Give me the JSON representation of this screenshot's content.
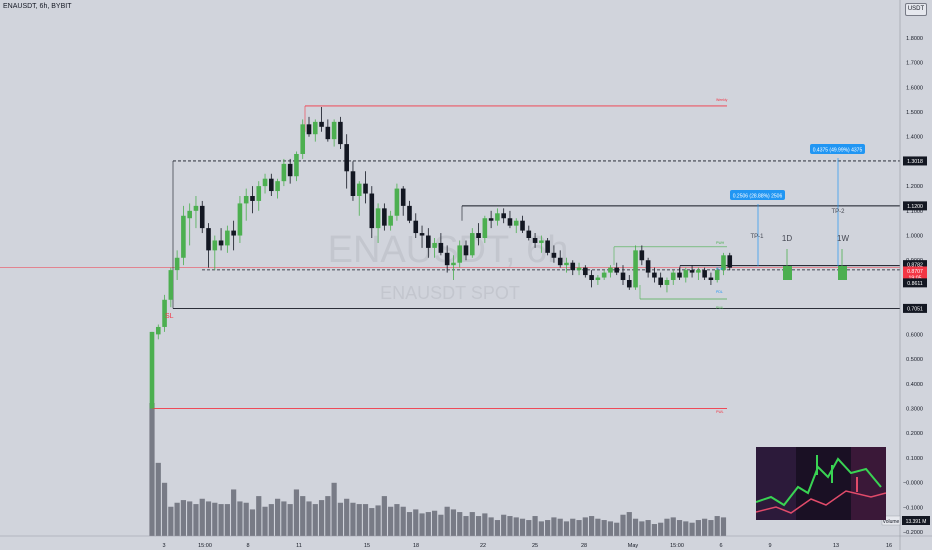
{
  "header": {
    "symbol_line": "ENAUSDT, 6h, BYBIT",
    "quote_badge": "USDT"
  },
  "watermark": {
    "main": "ENAUSDT, 6h",
    "sub": "ENAUSDT SPOT"
  },
  "colors": {
    "background": "#d1d4dc",
    "up": "#4caf50",
    "down": "#131722",
    "volume": "#787b86",
    "red_line": "#f23645",
    "accent_blue": "#2196f3",
    "green_zone": "#4caf50"
  },
  "chart_data": {
    "type": "candlestick",
    "symbol": "ENAUSDT",
    "timeframe": "6h",
    "exchange": "BYBIT",
    "y_ticks": [
      "1.8000",
      "1.7000",
      "1.6000",
      "1.5000",
      "1.4000",
      "1.3000",
      "1.2000",
      "1.1000",
      "1.0000",
      "0.9000",
      "0.8000",
      "0.7000",
      "0.6000",
      "0.5000",
      "0.4000",
      "0.3000",
      "0.2000",
      "0.1000",
      "−0.0000",
      "−0.1000",
      "−0.2000"
    ],
    "x_ticks": [
      "3",
      "15:00",
      "8",
      "11",
      "15",
      "18",
      "22",
      "25",
      "28",
      "May",
      "15:00",
      "6",
      "9",
      "13",
      "16"
    ],
    "ylim": [
      -0.2,
      1.8
    ],
    "price_labels": [
      {
        "value": "1.3018",
        "style": "dark"
      },
      {
        "value": "1.1200",
        "style": "dark"
      },
      {
        "value": "0.8782",
        "style": "dark"
      },
      {
        "value": "0.8707",
        "style": "red"
      },
      {
        "value": "19:05",
        "style": "red"
      },
      {
        "value": "0.8611",
        "style": "dark"
      },
      {
        "value": "0.7051",
        "style": "dark"
      }
    ],
    "volume_label": "Volume",
    "volume_value": "13.391 M",
    "annotations": {
      "sl": "SL",
      "tp1": "TP-1",
      "tp2": "TP-2",
      "target1": "0.2506 (28.88%) 2506",
      "target2": "0.4375 (49.99%) 4375",
      "tf_1d": "1D",
      "tf_1w": "1W",
      "lvl_high": "Weekly",
      "lvl_pwh": "PWH",
      "lvl_pwl": "PWL",
      "lvl_pdh": "PDH",
      "lvl_pdl": "PDL",
      "lvl_low": "PWL"
    },
    "candles": [
      [
        0.3,
        0.61,
        0.3,
        0.61
      ],
      [
        0.6,
        0.64,
        0.58,
        0.63
      ],
      [
        0.63,
        0.76,
        0.61,
        0.74
      ],
      [
        0.74,
        0.87,
        0.71,
        0.86
      ],
      [
        0.86,
        0.94,
        0.82,
        0.91
      ],
      [
        0.91,
        1.12,
        0.88,
        1.08
      ],
      [
        1.07,
        1.13,
        0.96,
        1.1
      ],
      [
        1.1,
        1.16,
        1.03,
        1.12
      ],
      [
        1.12,
        1.14,
        1.01,
        1.03
      ],
      [
        1.03,
        1.05,
        0.87,
        0.94
      ],
      [
        0.94,
        1.0,
        0.86,
        0.98
      ],
      [
        0.98,
        1.03,
        0.94,
        0.96
      ],
      [
        0.96,
        1.04,
        0.93,
        1.02
      ],
      [
        1.02,
        1.06,
        0.94,
        1.0
      ],
      [
        1.0,
        1.16,
        0.97,
        1.13
      ],
      [
        1.13,
        1.19,
        1.06,
        1.16
      ],
      [
        1.16,
        1.2,
        1.09,
        1.14
      ],
      [
        1.14,
        1.22,
        1.1,
        1.2
      ],
      [
        1.2,
        1.25,
        1.17,
        1.23
      ],
      [
        1.23,
        1.25,
        1.16,
        1.18
      ],
      [
        1.18,
        1.23,
        1.15,
        1.22
      ],
      [
        1.22,
        1.31,
        1.2,
        1.29
      ],
      [
        1.29,
        1.31,
        1.21,
        1.24
      ],
      [
        1.24,
        1.34,
        1.22,
        1.33
      ],
      [
        1.33,
        1.47,
        1.31,
        1.45
      ],
      [
        1.45,
        1.48,
        1.4,
        1.41
      ],
      [
        1.41,
        1.47,
        1.38,
        1.46
      ],
      [
        1.46,
        1.52,
        1.42,
        1.44
      ],
      [
        1.44,
        1.47,
        1.38,
        1.39
      ],
      [
        1.39,
        1.47,
        1.36,
        1.46
      ],
      [
        1.46,
        1.48,
        1.35,
        1.37
      ],
      [
        1.37,
        1.41,
        1.19,
        1.26
      ],
      [
        1.26,
        1.3,
        1.14,
        1.16
      ],
      [
        1.16,
        1.22,
        1.08,
        1.21
      ],
      [
        1.21,
        1.26,
        1.13,
        1.17
      ],
      [
        1.17,
        1.2,
        0.99,
        1.03
      ],
      [
        1.03,
        1.13,
        0.97,
        1.11
      ],
      [
        1.11,
        1.13,
        1.02,
        1.04
      ],
      [
        1.04,
        1.1,
        1.02,
        1.08
      ],
      [
        1.08,
        1.21,
        1.06,
        1.19
      ],
      [
        1.19,
        1.2,
        1.08,
        1.12
      ],
      [
        1.12,
        1.14,
        1.05,
        1.06
      ],
      [
        1.06,
        1.09,
        0.99,
        1.01
      ],
      [
        1.01,
        1.04,
        0.95,
        1.0
      ],
      [
        1.0,
        1.03,
        0.91,
        0.95
      ],
      [
        0.95,
        0.99,
        0.91,
        0.97
      ],
      [
        0.97,
        1.01,
        0.92,
        0.93
      ],
      [
        0.93,
        0.96,
        0.85,
        0.88
      ],
      [
        0.88,
        0.92,
        0.82,
        0.89
      ],
      [
        0.89,
        0.98,
        0.87,
        0.96
      ],
      [
        0.96,
        0.98,
        0.9,
        0.92
      ],
      [
        0.92,
        1.03,
        0.91,
        1.01
      ],
      [
        1.01,
        1.05,
        0.96,
        0.99
      ],
      [
        0.99,
        1.08,
        0.97,
        1.07
      ],
      [
        1.07,
        1.1,
        1.03,
        1.06
      ],
      [
        1.06,
        1.11,
        1.04,
        1.09
      ],
      [
        1.09,
        1.11,
        1.05,
        1.07
      ],
      [
        1.07,
        1.1,
        1.03,
        1.04
      ],
      [
        1.04,
        1.07,
        1.01,
        1.06
      ],
      [
        1.06,
        1.08,
        1.01,
        1.02
      ],
      [
        1.02,
        1.04,
        0.98,
        0.99
      ],
      [
        0.99,
        1.01,
        0.95,
        0.97
      ],
      [
        0.97,
        1.0,
        0.93,
        0.98
      ],
      [
        0.98,
        0.99,
        0.92,
        0.93
      ],
      [
        0.93,
        0.96,
        0.89,
        0.91
      ],
      [
        0.91,
        0.94,
        0.87,
        0.88
      ],
      [
        0.88,
        0.91,
        0.85,
        0.89
      ],
      [
        0.89,
        0.9,
        0.84,
        0.86
      ],
      [
        0.86,
        0.89,
        0.84,
        0.87
      ],
      [
        0.87,
        0.88,
        0.83,
        0.84
      ],
      [
        0.84,
        0.86,
        0.79,
        0.82
      ],
      [
        0.82,
        0.84,
        0.8,
        0.83
      ],
      [
        0.83,
        0.86,
        0.82,
        0.85
      ],
      [
        0.85,
        0.88,
        0.83,
        0.87
      ],
      [
        0.87,
        0.89,
        0.84,
        0.85
      ],
      [
        0.85,
        0.88,
        0.8,
        0.82
      ],
      [
        0.82,
        0.84,
        0.78,
        0.79
      ],
      [
        0.79,
        0.96,
        0.78,
        0.94
      ],
      [
        0.94,
        0.96,
        0.88,
        0.9
      ],
      [
        0.9,
        0.91,
        0.83,
        0.85
      ],
      [
        0.85,
        0.87,
        0.81,
        0.83
      ],
      [
        0.83,
        0.85,
        0.79,
        0.8
      ],
      [
        0.8,
        0.83,
        0.77,
        0.82
      ],
      [
        0.82,
        0.86,
        0.8,
        0.85
      ],
      [
        0.85,
        0.87,
        0.82,
        0.83
      ],
      [
        0.83,
        0.87,
        0.81,
        0.86
      ],
      [
        0.86,
        0.88,
        0.83,
        0.85
      ],
      [
        0.85,
        0.87,
        0.82,
        0.86
      ],
      [
        0.86,
        0.87,
        0.82,
        0.83
      ],
      [
        0.83,
        0.85,
        0.8,
        0.82
      ],
      [
        0.82,
        0.87,
        0.81,
        0.86
      ],
      [
        0.86,
        0.93,
        0.84,
        0.92
      ],
      [
        0.92,
        0.93,
        0.86,
        0.87
      ]
    ],
    "volumes": [
      100,
      55,
      40,
      22,
      25,
      27,
      26,
      24,
      28,
      26,
      25,
      24,
      24,
      35,
      26,
      25,
      20,
      30,
      22,
      24,
      28,
      26,
      24,
      35,
      30,
      26,
      24,
      27,
      30,
      40,
      25,
      28,
      25,
      24,
      24,
      21,
      23,
      30,
      22,
      24,
      22,
      18,
      20,
      17,
      18,
      19,
      16,
      22,
      20,
      18,
      15,
      18,
      15,
      17,
      14,
      12,
      16,
      15,
      14,
      13,
      12,
      15,
      11,
      12,
      14,
      13,
      11,
      13,
      12,
      14,
      15,
      13,
      12,
      11,
      10,
      16,
      18,
      13,
      11,
      12,
      9,
      10,
      13,
      14,
      12,
      11,
      10,
      12,
      13,
      12,
      15,
      14
    ]
  }
}
